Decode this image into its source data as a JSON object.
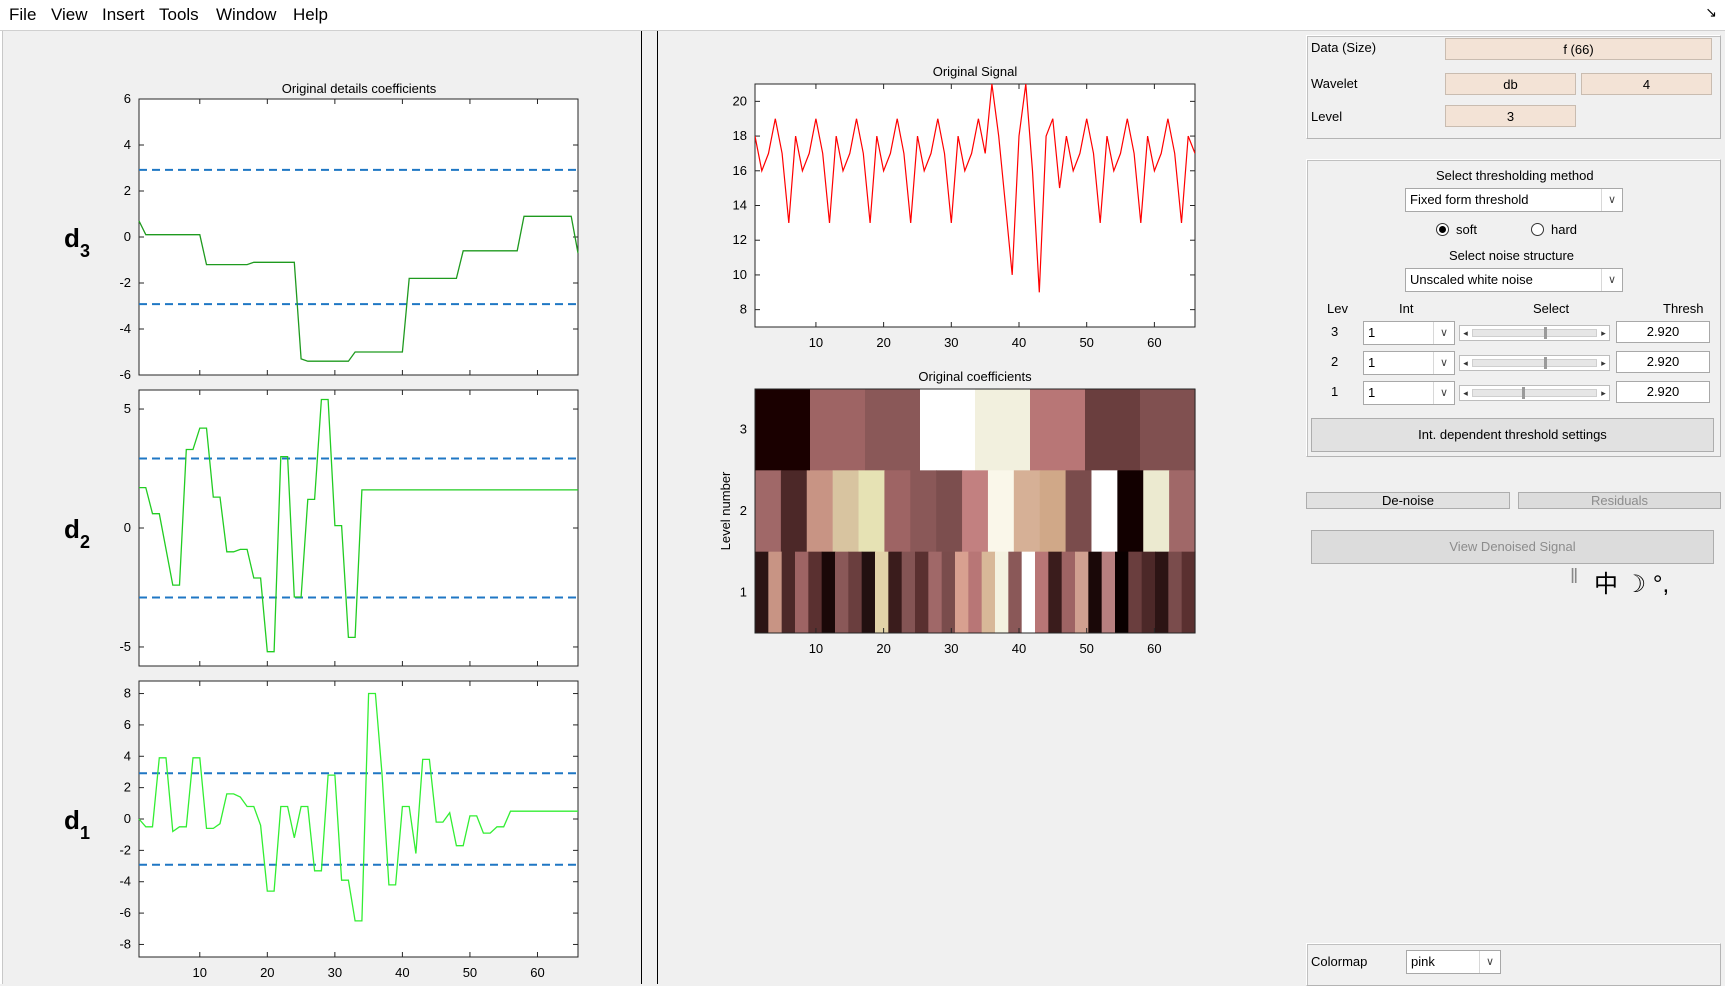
{
  "menu": [
    "File",
    "View",
    "Insert",
    "Tools",
    "Window",
    "Help"
  ],
  "corner_icon": "↘",
  "left_chart": {
    "title": "Original details coefficients",
    "threshold": 2.92,
    "panels": [
      {
        "name": "d3",
        "label_main": "d",
        "label_sub": "3",
        "ylim": [
          -6,
          6
        ],
        "yticks": [
          -6,
          -4,
          -2,
          0,
          2,
          4,
          6
        ],
        "color": "#1f9a1f",
        "x": [
          1,
          2,
          10,
          11,
          17,
          18,
          24,
          25,
          26,
          32,
          33,
          40,
          41,
          48,
          49,
          57,
          58,
          65,
          66
        ],
        "y": [
          0.7,
          0.1,
          0.1,
          -1.2,
          -1.2,
          -1.1,
          -1.1,
          -5.3,
          -5.4,
          -5.4,
          -5.0,
          -5.0,
          -1.8,
          -1.8,
          -0.6,
          -0.6,
          0.9,
          0.9,
          -0.7
        ]
      },
      {
        "name": "d2",
        "label_main": "d",
        "label_sub": "2",
        "ylim": [
          -5.8,
          5.8
        ],
        "yticks": [
          -5,
          0,
          5
        ],
        "color": "#22cc22",
        "x": [
          1,
          2,
          3,
          4,
          6,
          7,
          8,
          9,
          10,
          11,
          12,
          13,
          14,
          15,
          16,
          17,
          18,
          19,
          20,
          21,
          22,
          23,
          24,
          25,
          26,
          27,
          28,
          29,
          30,
          31,
          32,
          33,
          34,
          35,
          36,
          37,
          38,
          39,
          40,
          41,
          42,
          43,
          44,
          45,
          46,
          47,
          48,
          49,
          50,
          51,
          52,
          53,
          54,
          55,
          56,
          57,
          58,
          59,
          60,
          61,
          62,
          63,
          64,
          65,
          66
        ],
        "y": [
          1.7,
          1.7,
          0.6,
          0.6,
          -2.4,
          -2.4,
          3.3,
          3.3,
          4.2,
          4.2,
          1.3,
          1.3,
          -1.0,
          -1.0,
          -0.9,
          -0.9,
          -2.1,
          -2.1,
          -5.2,
          -5.2,
          3.0,
          3.0,
          -2.9,
          -2.9,
          1.2,
          1.2,
          5.4,
          5.4,
          0.1,
          0.1,
          -4.6,
          -4.6,
          1.6,
          1.6,
          1.6,
          1.6,
          1.6,
          1.6,
          1.6,
          1.6,
          1.6,
          1.6,
          1.6,
          1.6,
          1.6,
          1.6,
          1.6,
          1.6,
          1.6,
          1.6,
          1.6,
          1.6,
          1.6,
          1.6,
          1.6,
          1.6,
          1.6,
          1.6,
          1.6,
          1.6,
          1.6,
          1.6,
          1.6,
          1.6,
          1.6
        ]
      },
      {
        "name": "d1",
        "label_main": "d",
        "label_sub": "1",
        "ylim": [
          -8.8,
          8.8
        ],
        "yticks": [
          -8,
          -6,
          -4,
          -2,
          0,
          2,
          4,
          6,
          8
        ],
        "color": "#33ee33",
        "x": [
          1,
          2,
          3,
          4,
          5,
          6,
          7,
          8,
          9,
          10,
          11,
          12,
          13,
          14,
          15,
          16,
          17,
          18,
          19,
          20,
          21,
          22,
          23,
          24,
          25,
          26,
          27,
          28,
          29,
          30,
          31,
          32,
          33,
          34,
          35,
          36,
          37,
          38,
          39,
          40,
          41,
          42,
          43,
          44,
          45,
          46,
          47,
          48,
          49,
          50,
          51,
          52,
          53,
          54,
          55,
          56,
          57,
          58,
          59,
          60,
          61,
          62,
          63,
          64,
          65,
          66
        ],
        "y": [
          0,
          -0.5,
          -0.5,
          3.9,
          3.9,
          -0.8,
          -0.5,
          -0.5,
          3.9,
          3.9,
          -0.6,
          -0.6,
          -0.3,
          1.6,
          1.6,
          1.4,
          0.8,
          0.8,
          -0.4,
          -4.6,
          -4.6,
          0.8,
          0.8,
          -1.2,
          0.8,
          0.8,
          -3.3,
          -3.3,
          2.8,
          2.8,
          -3.9,
          -3.9,
          -6.5,
          -6.5,
          8.0,
          8.0,
          2.8,
          -4.2,
          -4.2,
          0.8,
          0.8,
          -2.2,
          3.8,
          3.8,
          -0.2,
          -0.2,
          0.4,
          -1.7,
          -1.7,
          0.2,
          0.2,
          -0.9,
          -0.9,
          -0.5,
          -0.5,
          0.5,
          0.5,
          0.5,
          0.5,
          0.5,
          0.5,
          0.5,
          0.5,
          0.5,
          0.5,
          0.5
        ]
      }
    ],
    "xticks": [
      10,
      20,
      30,
      40,
      50,
      60
    ],
    "xlim": [
      1,
      66
    ]
  },
  "chart_data": [
    {
      "type": "line",
      "title": "Original Signal",
      "xlim": [
        1,
        66
      ],
      "ylim": [
        7,
        21
      ],
      "xticks": [
        10,
        20,
        30,
        40,
        50,
        60
      ],
      "yticks": [
        8,
        10,
        12,
        14,
        16,
        18,
        20
      ],
      "color": "#ff0000",
      "x": [
        1,
        2,
        3,
        4,
        5,
        6,
        7,
        8,
        9,
        10,
        11,
        12,
        13,
        14,
        15,
        16,
        17,
        18,
        19,
        20,
        21,
        22,
        23,
        24,
        25,
        26,
        27,
        28,
        29,
        30,
        31,
        32,
        33,
        34,
        35,
        36,
        37,
        38,
        39,
        40,
        41,
        42,
        43,
        44,
        45,
        46,
        47,
        48,
        49,
        50,
        51,
        52,
        53,
        54,
        55,
        56,
        57,
        58,
        59,
        60,
        61,
        62,
        63,
        64,
        65,
        66
      ],
      "y": [
        18,
        16,
        17,
        19,
        17,
        13,
        18,
        16,
        17,
        19,
        17,
        13,
        18,
        16,
        17,
        19,
        17,
        13,
        18,
        16,
        17,
        19,
        17,
        13,
        18,
        16,
        17,
        19,
        17,
        13,
        18,
        16,
        17,
        19,
        17,
        21,
        18,
        14,
        10,
        18,
        21,
        16,
        9,
        18,
        19,
        15,
        18,
        16,
        17,
        19,
        17,
        13,
        18,
        16,
        17,
        19,
        17,
        13,
        18,
        16,
        17,
        19,
        17,
        13,
        18,
        17
      ]
    },
    {
      "type": "heatmap",
      "title": "Original coefficients",
      "ylabel": "Level number",
      "xticks": [
        10,
        20,
        30,
        40,
        50,
        60
      ],
      "yticks": [
        1,
        2,
        3
      ],
      "xlim": [
        1,
        66
      ],
      "rows": [
        {
          "level": 3,
          "colors": [
            "#1a0000",
            "#9e6464",
            "#8a5858",
            "#ffffff",
            "#f2f0de",
            "#b87676",
            "#6a3e3e",
            "#805050"
          ]
        },
        {
          "level": 2,
          "colors": [
            "#a06868",
            "#4c2828",
            "#c89484",
            "#d8c4a0",
            "#e6e2b4",
            "#9e6464",
            "#8a5858",
            "#7c4e4e",
            "#c28080",
            "#faf7ea",
            "#d6b096",
            "#d0a888",
            "#7a4c4c",
            "#ffffff",
            "#120000",
            "#ecead0",
            "#a06868"
          ]
        },
        {
          "level": 1,
          "colors": [
            "#2c1414",
            "#c89484",
            "#4c2828",
            "#9e6464",
            "#5a3030",
            "#1a0808",
            "#8a5858",
            "#6a3e3e",
            "#221010",
            "#e2d2a8",
            "#3a1c1c",
            "#845454",
            "#5a3030",
            "#a06868",
            "#7a4c4c",
            "#d8a090",
            "#b87676",
            "#d8b898",
            "#f4f2e0",
            "#8a5858",
            "#ffffff",
            "#b87676",
            "#3a1c1c",
            "#9e6464",
            "#d0a090",
            "#1a0808",
            "#b88080",
            "#0a0000",
            "#6a3e3e",
            "#4c2828",
            "#2c1414",
            "#7a4c4c",
            "#5a3030"
          ]
        }
      ]
    }
  ],
  "right_panel": {
    "data_label": "Data  (Size)",
    "data_value": "f  (66)",
    "wavelet_label": "Wavelet",
    "wavelet_family": "db",
    "wavelet_order": "4",
    "level_label": "Level",
    "level_value": "3",
    "thresh_method_label": "Select thresholding method",
    "thresh_method_value": "Fixed form threshold",
    "soft_label": "soft",
    "hard_label": "hard",
    "noise_label": "Select noise structure",
    "noise_value": "Unscaled white noise",
    "col_lev": "Lev",
    "col_int": "Int",
    "col_select": "Select",
    "col_thresh": "Thresh",
    "rows": [
      {
        "lev": "3",
        "int": "1",
        "thresh": "2.920",
        "pos": 0.58
      },
      {
        "lev": "2",
        "int": "1",
        "thresh": "2.920",
        "pos": 0.58
      },
      {
        "lev": "1",
        "int": "1",
        "thresh": "2.920",
        "pos": 0.4
      }
    ],
    "int_dep_button": "Int. dependent threshold settings",
    "denoise_button": "De-noise",
    "residuals_button": "Residuals",
    "view_denoised_button": "View Denoised Signal",
    "colormap_label": "Colormap",
    "colormap_value": "pink",
    "ime_text": "中 ☽ °,"
  }
}
